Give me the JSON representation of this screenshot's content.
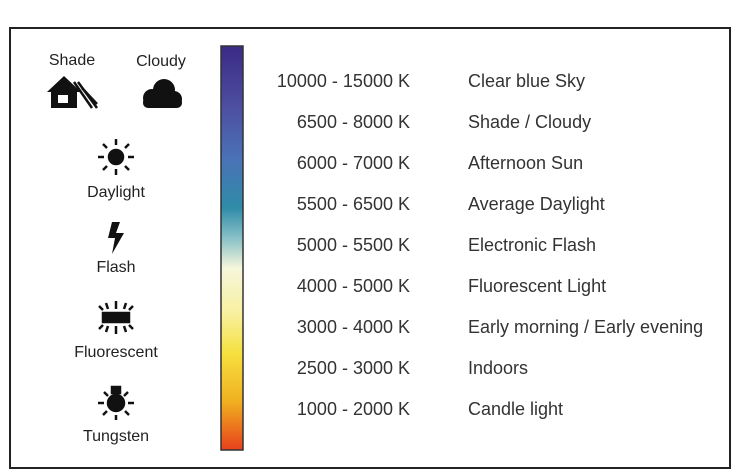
{
  "icons": [
    {
      "label": "Shade"
    },
    {
      "label": "Cloudy"
    },
    {
      "label": "Daylight"
    },
    {
      "label": "Flash"
    },
    {
      "label": "Fluorescent"
    },
    {
      "label": "Tungsten"
    }
  ],
  "rows": [
    [
      "10000 - 15000 K",
      "Clear blue Sky"
    ],
    [
      "6500 - 8000 K",
      "Shade / Cloudy"
    ],
    [
      "6000 - 7000 K",
      "Afternoon Sun"
    ],
    [
      "5500 - 6500 K",
      "Average Daylight"
    ],
    [
      "5000 - 5500 K",
      "Electronic Flash"
    ],
    [
      "4000 - 5000 K",
      "Fluorescent Light"
    ],
    [
      "3000 - 4000 K",
      "Early morning / Early evening"
    ],
    [
      "2500 - 3000 K",
      "Indoors"
    ],
    [
      "1000 - 2000 K",
      "Candle light"
    ]
  ]
}
